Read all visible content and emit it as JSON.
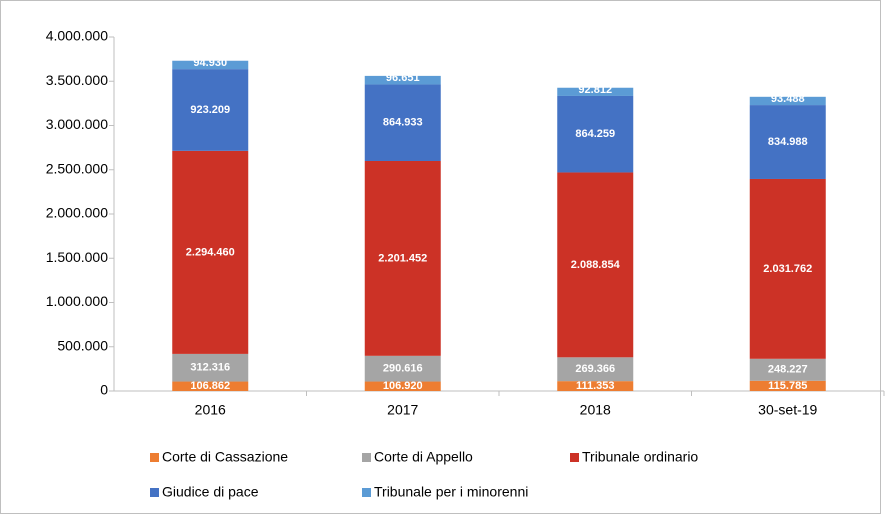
{
  "chart_data": {
    "type": "stacked_bar",
    "categories": [
      "2016",
      "2017",
      "2018",
      "30-set-19"
    ],
    "series": [
      {
        "name": "Corte di Cassazione",
        "color": "#ed7d31",
        "values": [
          106862,
          106920,
          111353,
          115785
        ],
        "value_labels": [
          "106.862",
          "106.920",
          "111.353",
          "115.785"
        ]
      },
      {
        "name": "Corte di Appello",
        "color": "#a5a5a5",
        "values": [
          312316,
          290616,
          269366,
          248227
        ],
        "value_labels": [
          "312.316",
          "290.616",
          "269.366",
          "248.227"
        ]
      },
      {
        "name": "Tribunale ordinario",
        "color": "#cc3226",
        "values": [
          2294460,
          2201452,
          2088854,
          2031762
        ],
        "value_labels": [
          "2.294.460",
          "2.201.452",
          "2.088.854",
          "2.031.762"
        ]
      },
      {
        "name": "Giudice di pace",
        "color": "#4472c4",
        "values": [
          923209,
          864933,
          864259,
          834988
        ],
        "value_labels": [
          "923.209",
          "864.933",
          "864.259",
          "834.988"
        ]
      },
      {
        "name": "Tribunale per i minorenni",
        "color": "#5b9bd5",
        "values": [
          94930,
          96651,
          92812,
          93488
        ],
        "value_labels": [
          "94.930",
          "96.651",
          "92.812",
          "93.488"
        ]
      }
    ],
    "ylim": [
      0,
      4000000
    ],
    "yticks": [
      0,
      {
        "value": 500000,
        "label": "500.000"
      },
      {
        "value": 1000000,
        "label": "1.000.000"
      },
      {
        "value": 1500000,
        "label": "1.500.000"
      },
      {
        "value": 2000000,
        "label": "2.000.000"
      },
      {
        "value": 2500000,
        "label": "2.500.000"
      },
      {
        "value": 3000000,
        "label": "3.000.000"
      },
      {
        "value": 3500000,
        "label": "3.500.000"
      },
      {
        "value": 4000000,
        "label": "4.000.000"
      }
    ],
    "grid": false,
    "legend": "bottom"
  }
}
